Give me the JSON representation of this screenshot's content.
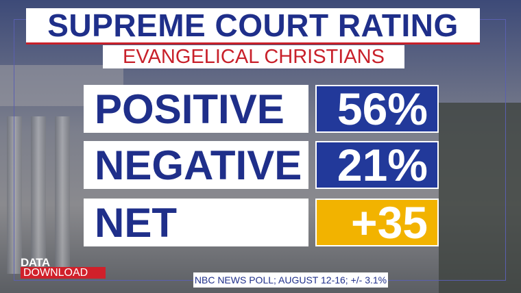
{
  "header": {
    "title": "SUPREME COURT RATING",
    "subtitle": "EVANGELICAL CHRISTIANS"
  },
  "rows": [
    {
      "label": "POSITIVE",
      "value": "56%"
    },
    {
      "label": "NEGATIVE",
      "value": "21%"
    },
    {
      "label": "NET",
      "value": "+35"
    }
  ],
  "brand": {
    "line1": "DATA",
    "line2": "DOWNLOAD"
  },
  "footer": "NBC NEWS POLL; AUGUST 12-16; +/- 3.1%"
}
